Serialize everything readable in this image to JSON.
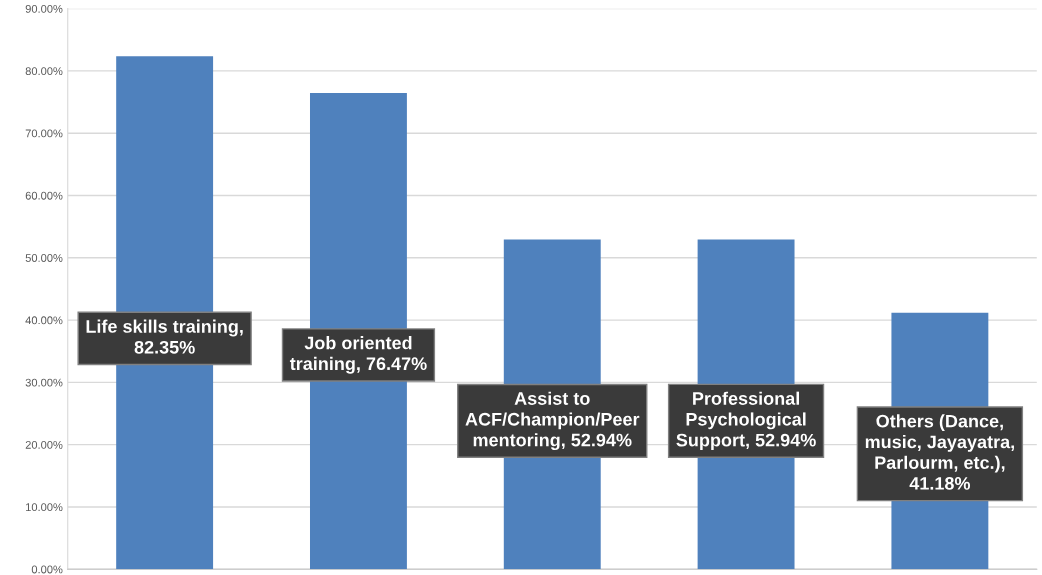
{
  "chart_data": {
    "type": "bar",
    "categories": [
      null,
      null,
      null,
      null,
      null
    ],
    "values": [
      82.35,
      76.47,
      52.94,
      52.94,
      41.18
    ],
    "color": "#4f81bd",
    "value_labels": [
      "Life skills training,\n82.35%",
      "Job oriented\ntraining, 76.47%",
      "Assist to\nACF/Champion/Peer\nmentoring, 52.94%",
      "Professional\nPsychological\nSupport, 52.94%",
      "Others (Dance,\nmusic, Jayayatra,\nParlourm, etc.),\n41.18%"
    ],
    "ylim": [
      0,
      90
    ],
    "yticks": [
      {
        "value": 0,
        "label": "0.00%"
      },
      {
        "value": 10,
        "label": "10.00%"
      },
      {
        "value": 20,
        "label": "20.00%"
      },
      {
        "value": 30,
        "label": "30.00%"
      },
      {
        "value": 40,
        "label": "40.00%"
      },
      {
        "value": 50,
        "label": "50.00%"
      },
      {
        "value": 60,
        "label": "60.00%"
      },
      {
        "value": 70,
        "label": "70.00%"
      },
      {
        "value": 80,
        "label": "80.00%"
      },
      {
        "value": 90,
        "label": "90.00%"
      }
    ],
    "grid": "y",
    "legend": false
  }
}
